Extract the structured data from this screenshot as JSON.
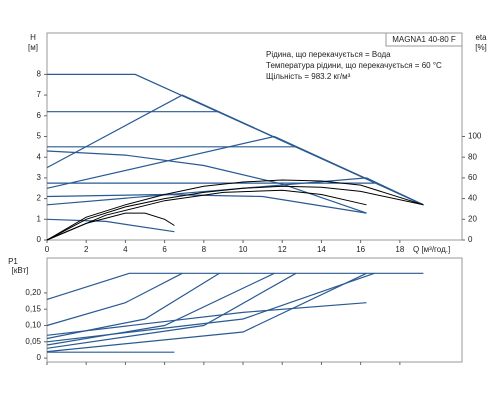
{
  "chart_data": [
    {
      "type": "line",
      "box_label": "MAGNA1 40-80 F",
      "annotations": [
        "Рідина, що перекачується = Вода",
        "Температура рідини, що перекачується = 60 °C",
        "Щільність = 983.2 кг/м³"
      ],
      "ylabel": "H",
      "yunit": "[м]",
      "y2label": "eta",
      "y2unit": "[%]",
      "xlabel": "Q [м³/год.]",
      "xlim": [
        0,
        21.17
      ],
      "xticks": [
        0,
        2,
        4,
        6,
        8,
        10,
        12,
        14,
        16,
        18
      ],
      "ylim": [
        0,
        10
      ],
      "yticks": [
        0,
        1,
        2,
        3,
        4,
        5,
        6,
        7,
        8
      ],
      "y2lim": [
        0,
        200
      ],
      "y2ticks": [
        0,
        20,
        40,
        60,
        80,
        100
      ],
      "series": [
        {
          "color": "#2a5a93",
          "x": [
            0,
            4.5,
            19.2
          ],
          "values": [
            8,
            8,
            1.7
          ]
        },
        {
          "color": "#2a5a93",
          "x": [
            0,
            6.9,
            19.2
          ],
          "values": [
            3.5,
            7,
            1.7
          ]
        },
        {
          "color": "#2a5a93",
          "x": [
            0,
            8.8
          ],
          "values": [
            6.2,
            6.2
          ]
        },
        {
          "color": "#2a5a93",
          "x": [
            0,
            11.6,
            19.2
          ],
          "values": [
            2.5,
            5,
            1.7
          ]
        },
        {
          "color": "#2a5a93",
          "x": [
            0,
            12.7
          ],
          "values": [
            4.5,
            4.5
          ]
        },
        {
          "color": "#2a5a93",
          "x": [
            0,
            16.7
          ],
          "values": [
            2.75,
            2.75
          ]
        },
        {
          "color": "#2a5a93",
          "x": [
            0,
            16.3,
            19.2
          ],
          "values": [
            1.7,
            3.0,
            1.7
          ]
        },
        {
          "color": "#2a5a93",
          "x": [
            0,
            4,
            8,
            12,
            16.3
          ],
          "values": [
            4.3,
            4.1,
            3.6,
            2.7,
            1.3
          ]
        },
        {
          "color": "#2a5a93",
          "x": [
            0,
            6,
            11,
            16.3
          ],
          "values": [
            2.1,
            2.2,
            2.1,
            1.3
          ]
        },
        {
          "color": "#2a5a93",
          "x": [
            0,
            3,
            6.5
          ],
          "values": [
            1.0,
            0.9,
            0.4
          ]
        },
        {
          "color": "#000000",
          "axis": "y2",
          "x": [
            0,
            2,
            4,
            6,
            8,
            10,
            12,
            14,
            16,
            19.2
          ],
          "values": [
            0,
            20,
            32,
            40,
            46,
            50,
            52,
            51,
            47,
            34
          ]
        },
        {
          "color": "#000000",
          "axis": "y2",
          "x": [
            0,
            2,
            4,
            6,
            8,
            10,
            12,
            14,
            16,
            19.2
          ],
          "values": [
            0,
            22,
            34,
            44,
            52,
            56,
            58,
            57,
            53,
            34
          ]
        },
        {
          "color": "#000000",
          "axis": "y2",
          "x": [
            0,
            3,
            6,
            9,
            12,
            14,
            16.3
          ],
          "values": [
            0,
            24,
            38,
            46,
            48,
            44,
            34
          ]
        },
        {
          "color": "#000000",
          "axis": "y2",
          "x": [
            0,
            2,
            4,
            5,
            6,
            6.5
          ],
          "values": [
            0,
            16,
            26,
            26,
            20,
            14
          ]
        }
      ]
    },
    {
      "type": "line",
      "ylabel": "P1",
      "yunit": "[кВт]",
      "xlim": [
        0,
        21.17
      ],
      "xticks": [
        0,
        2,
        4,
        6,
        8,
        10,
        12,
        14,
        16,
        18
      ],
      "ylim": [
        -0.012,
        0.307
      ],
      "yticks": [
        0,
        {
          "value": 0.05,
          "label": "0,05"
        },
        {
          "value": 0.1,
          "label": "0,10"
        },
        {
          "value": 0.15,
          "label": "0,15"
        },
        {
          "value": 0.2,
          "label": "0,20"
        }
      ],
      "series": [
        {
          "color": "#2a5a93",
          "x": [
            0,
            4.2,
            19.2
          ],
          "values": [
            0.18,
            0.26,
            0.26
          ]
        },
        {
          "color": "#2a5a93",
          "x": [
            0,
            4,
            6.9
          ],
          "values": [
            0.1,
            0.17,
            0.26
          ]
        },
        {
          "color": "#2a5a93",
          "x": [
            0,
            5,
            8.8
          ],
          "values": [
            0.06,
            0.12,
            0.26
          ]
        },
        {
          "color": "#2a5a93",
          "x": [
            0,
            6,
            11.6
          ],
          "values": [
            0.04,
            0.1,
            0.26
          ]
        },
        {
          "color": "#2a5a93",
          "x": [
            0,
            8,
            12.7
          ],
          "values": [
            0.03,
            0.1,
            0.26
          ]
        },
        {
          "color": "#2a5a93",
          "x": [
            0,
            10,
            16.7
          ],
          "values": [
            0.05,
            0.12,
            0.26
          ]
        },
        {
          "color": "#2a5a93",
          "x": [
            0,
            10,
            16.3
          ],
          "values": [
            0.07,
            0.14,
            0.17
          ]
        },
        {
          "color": "#2a5a93",
          "x": [
            0,
            10,
            16.3
          ],
          "values": [
            0.02,
            0.08,
            0.26
          ]
        },
        {
          "color": "#2a5a93",
          "x": [
            0,
            6.5
          ],
          "values": [
            0.018,
            0.018
          ]
        }
      ]
    }
  ]
}
